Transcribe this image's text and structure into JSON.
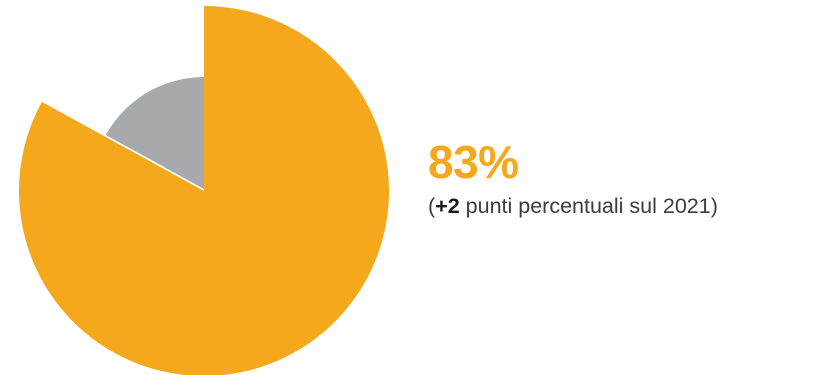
{
  "chart_data": {
    "type": "pie",
    "slices": [
      {
        "value": 83,
        "color": "#F5A81C",
        "exploded": true
      },
      {
        "value": 17,
        "color": "#A7AAAD",
        "exploded": false
      }
    ]
  },
  "headline": {
    "value": "83%",
    "color": "#F5A81C"
  },
  "caption": {
    "open_paren": "(",
    "delta": "+2",
    "rest": " punti percentuali sul 2021)"
  }
}
